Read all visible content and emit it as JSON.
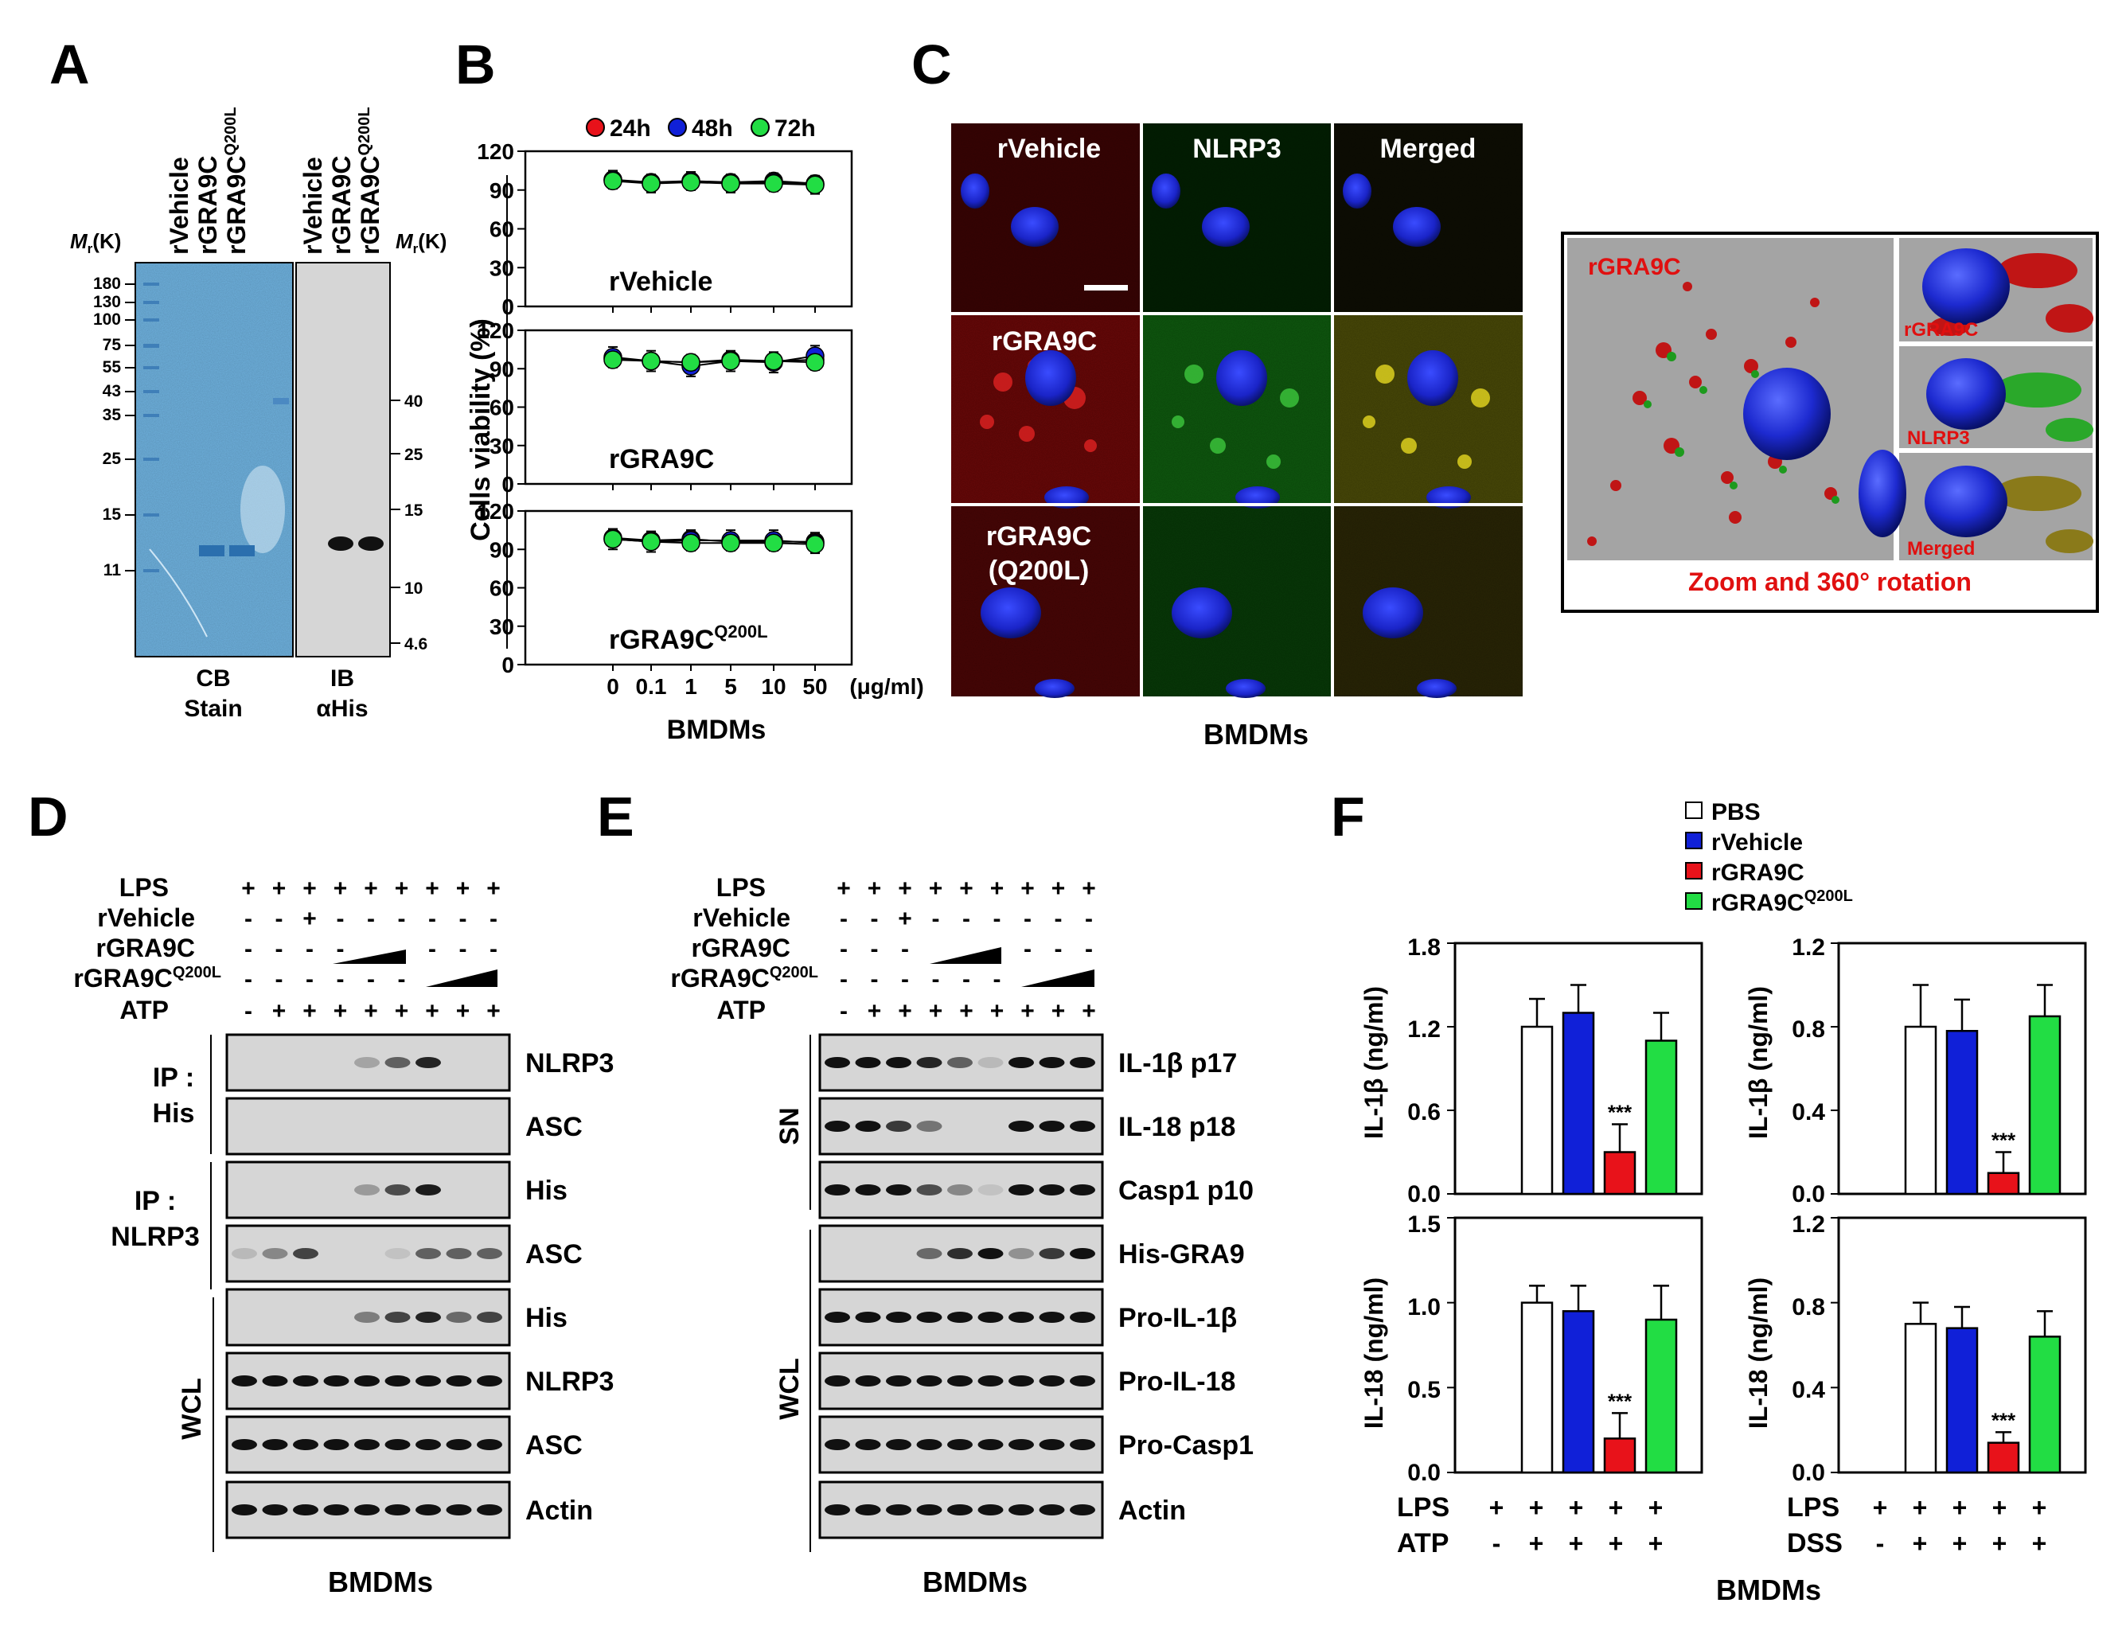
{
  "colors": {
    "red": "#e8121a",
    "blue": "#1020d8",
    "green": "#22dd44",
    "white": "#ffffff",
    "gel_blue": "#6fb2df",
    "blot_gray": "#d6d6d6",
    "render_gray": "#a4a4a4",
    "conf_red": "#a01010",
    "conf_green": "#1d9a1d",
    "annotation_red": "#e01010"
  },
  "panel_letters": [
    "A",
    "B",
    "C",
    "D",
    "E",
    "F"
  ],
  "panelA": {
    "lanes": [
      "rVehicle",
      "rGRA9C",
      "rGRA9C"
    ],
    "lane_sup": "Q200L",
    "mr_label": "M",
    "mr_sub": "r",
    "mr_unit": "(K)",
    "left_markers": [
      "180",
      "130",
      "100",
      "75",
      "55",
      "43",
      "35",
      "25",
      "15",
      "11"
    ],
    "right_markers": [
      "40",
      "25",
      "15",
      "10",
      "4.6"
    ],
    "cb_line1": "CB",
    "cb_line2": "Stain",
    "ib_line1": "IB",
    "ib_line2": "αHis"
  },
  "panelB": {
    "legend": [
      "24h",
      "48h",
      "72h"
    ],
    "ylabel": "Cells viability (%)",
    "yticks": [
      "120",
      "90",
      "60",
      "30",
      "0"
    ],
    "xticks": [
      "0",
      "0.1",
      "1",
      "5",
      "10",
      "50"
    ],
    "unit": "(μg/ml)",
    "footer": "BMDMs",
    "subplots": [
      "rVehicle",
      "rGRA9C",
      "rGRA9C"
    ],
    "sup": "Q200L"
  },
  "chart_data": [
    {
      "type": "line",
      "title": "rVehicle",
      "x": [
        "0",
        "0.1",
        "1",
        "5",
        "10",
        "50"
      ],
      "xlabel": "BMDMs",
      "ylabel": "Cells viability (%)",
      "ylim": [
        0,
        120
      ],
      "series": [
        {
          "name": "24h",
          "values": [
            98,
            96,
            97,
            96,
            97,
            95
          ],
          "err": 6
        },
        {
          "name": "48h",
          "values": [
            98,
            95,
            97,
            95,
            96,
            94
          ],
          "err": 7
        },
        {
          "name": "72h",
          "values": [
            97,
            95,
            96,
            95,
            95,
            94
          ],
          "err": 6
        }
      ]
    },
    {
      "type": "line",
      "title": "rGRA9C",
      "x": [
        "0",
        "0.1",
        "1",
        "5",
        "10",
        "50"
      ],
      "xlabel": "BMDMs",
      "ylabel": "Cells viability (%)",
      "ylim": [
        0,
        120
      ],
      "series": [
        {
          "name": "24h",
          "values": [
            98,
            96,
            95,
            97,
            96,
            97
          ],
          "err": 6
        },
        {
          "name": "48h",
          "values": [
            99,
            96,
            92,
            96,
            95,
            100
          ],
          "err": 8
        },
        {
          "name": "72h",
          "values": [
            97,
            96,
            95,
            96,
            96,
            95
          ],
          "err": 6
        }
      ]
    },
    {
      "type": "line",
      "title": "rGRA9CQ200L",
      "x": [
        "0",
        "0.1",
        "1",
        "5",
        "10",
        "50"
      ],
      "xlabel": "BMDMs",
      "ylabel": "Cells viability (%)",
      "ylim": [
        0,
        120
      ],
      "series": [
        {
          "name": "24h",
          "values": [
            99,
            97,
            98,
            96,
            96,
            96
          ],
          "err": 7
        },
        {
          "name": "48h",
          "values": [
            98,
            96,
            97,
            97,
            97,
            95
          ],
          "err": 8
        },
        {
          "name": "72h",
          "values": [
            98,
            96,
            95,
            95,
            95,
            94
          ],
          "err": 6
        }
      ]
    },
    {
      "type": "bar",
      "categories": [
        "PBS",
        "rVehicle",
        "rGRA9C",
        "rGRA9CQ200L"
      ],
      "values": [
        1.2,
        1.3,
        0.3,
        1.1
      ],
      "errors": [
        0.2,
        0.2,
        0.2,
        0.2
      ],
      "ylabel": "IL-1β (ng/ml)",
      "ylim": [
        0,
        1.8
      ],
      "annotation": "***"
    },
    {
      "type": "bar",
      "categories": [
        "PBS",
        "rVehicle",
        "rGRA9C",
        "rGRA9CQ200L"
      ],
      "values": [
        0.8,
        0.78,
        0.1,
        0.85
      ],
      "errors": [
        0.2,
        0.15,
        0.1,
        0.15
      ],
      "ylabel": "IL-1β (ng/ml)",
      "ylim": [
        0,
        1.2
      ],
      "annotation": "***"
    },
    {
      "type": "bar",
      "categories": [
        "PBS",
        "rVehicle",
        "rGRA9C",
        "rGRA9CQ200L"
      ],
      "values": [
        1.0,
        0.95,
        0.2,
        0.9
      ],
      "errors": [
        0.1,
        0.15,
        0.15,
        0.2
      ],
      "ylabel": "IL-18 (ng/ml)",
      "ylim": [
        0,
        1.5
      ],
      "annotation": "***"
    },
    {
      "type": "bar",
      "categories": [
        "PBS",
        "rVehicle",
        "rGRA9C",
        "rGRA9CQ200L"
      ],
      "values": [
        0.7,
        0.68,
        0.14,
        0.64
      ],
      "errors": [
        0.1,
        0.1,
        0.05,
        0.12
      ],
      "ylabel": "IL-18 (ng/ml)",
      "ylim": [
        0,
        1.2
      ],
      "annotation": "***"
    }
  ],
  "panelC": {
    "cols": [
      "rVehicle",
      "NLRP3",
      "Merged"
    ],
    "rows": [
      "rVehicle",
      "rGRA9C",
      "rGRA9C",
      "(Q200L)"
    ],
    "footer": "BMDMs",
    "inset_labels": [
      "rGRA9C",
      "rGRA9C",
      "NLRP3",
      "Merged"
    ],
    "inset_caption": "Zoom and 360° rotation"
  },
  "panelD": {
    "cond_labels": [
      "LPS",
      "rVehicle",
      "rGRA9C",
      "rGRA9C",
      "ATP"
    ],
    "cond_sup": "Q200L",
    "cond_rows": [
      [
        "+",
        "+",
        "+",
        "+",
        "+",
        "+",
        "+",
        "+",
        "+"
      ],
      [
        "-",
        "-",
        "+",
        "-",
        "-",
        "-",
        "-",
        "-",
        "-"
      ],
      [
        "-",
        "-",
        "-",
        "-",
        "",
        "",
        "-",
        "-",
        "-"
      ],
      [
        "-",
        "-",
        "-",
        "-",
        "-",
        "-",
        "",
        "",
        ""
      ],
      [
        "-",
        "+",
        "+",
        "+",
        "+",
        "+",
        "+",
        "+",
        "+"
      ]
    ],
    "group_labels": [
      "IP :",
      "His",
      "IP :",
      "NLRP3",
      "WCL"
    ],
    "blots": [
      "NLRP3",
      "ASC",
      "His",
      "ASC",
      "His",
      "NLRP3",
      "ASC",
      "Actin"
    ],
    "footer": "BMDMs"
  },
  "panelE": {
    "cond_labels": [
      "LPS",
      "rVehicle",
      "rGRA9C",
      "rGRA9C",
      "ATP"
    ],
    "cond_sup": "Q200L",
    "cond_rows": [
      [
        "+",
        "+",
        "+",
        "+",
        "+",
        "+",
        "+",
        "+",
        "+"
      ],
      [
        "-",
        "-",
        "+",
        "-",
        "-",
        "-",
        "-",
        "-",
        "-"
      ],
      [
        "-",
        "-",
        "-",
        "",
        "",
        "",
        "-",
        "-",
        "-"
      ],
      [
        "-",
        "-",
        "-",
        "-",
        "-",
        "-",
        "",
        "",
        ""
      ],
      [
        "-",
        "+",
        "+",
        "+",
        "+",
        "+",
        "+",
        "+",
        "+"
      ]
    ],
    "group_labels": [
      "SN",
      "WCL"
    ],
    "blots": [
      "IL-1β p17",
      "IL-18 p18",
      "Casp1 p10",
      "His-GRA9",
      "Pro-IL-1β",
      "Pro-IL-18",
      "Pro-Casp1",
      "Actin"
    ],
    "footer": "BMDMs"
  },
  "panelF": {
    "legend": [
      "PBS",
      "rVehicle",
      "rGRA9C",
      "rGRA9C"
    ],
    "legend_sup": "Q200L",
    "yticks_il1b_left": [
      "1.8",
      "1.2",
      "0.6",
      "0.0"
    ],
    "yticks_il1b_right": [
      "1.2",
      "0.8",
      "0.4",
      "0.0"
    ],
    "yticks_il18_left": [
      "1.5",
      "1.0",
      "0.5",
      "0.0"
    ],
    "yticks_il18_right": [
      "1.2",
      "0.8",
      "0.4",
      "0.0"
    ],
    "ylabel_il1b": "IL-1β (ng/ml)",
    "ylabel_il18": "IL-18 (ng/ml)",
    "row1_label": "LPS",
    "row2_left": "ATP",
    "row2_right": "DSS",
    "row1_signs": [
      "+",
      "+",
      "+",
      "+",
      "+"
    ],
    "row2_signs": [
      "-",
      "+",
      "+",
      "+",
      "+"
    ],
    "footer": "BMDMs",
    "sig": "***"
  }
}
